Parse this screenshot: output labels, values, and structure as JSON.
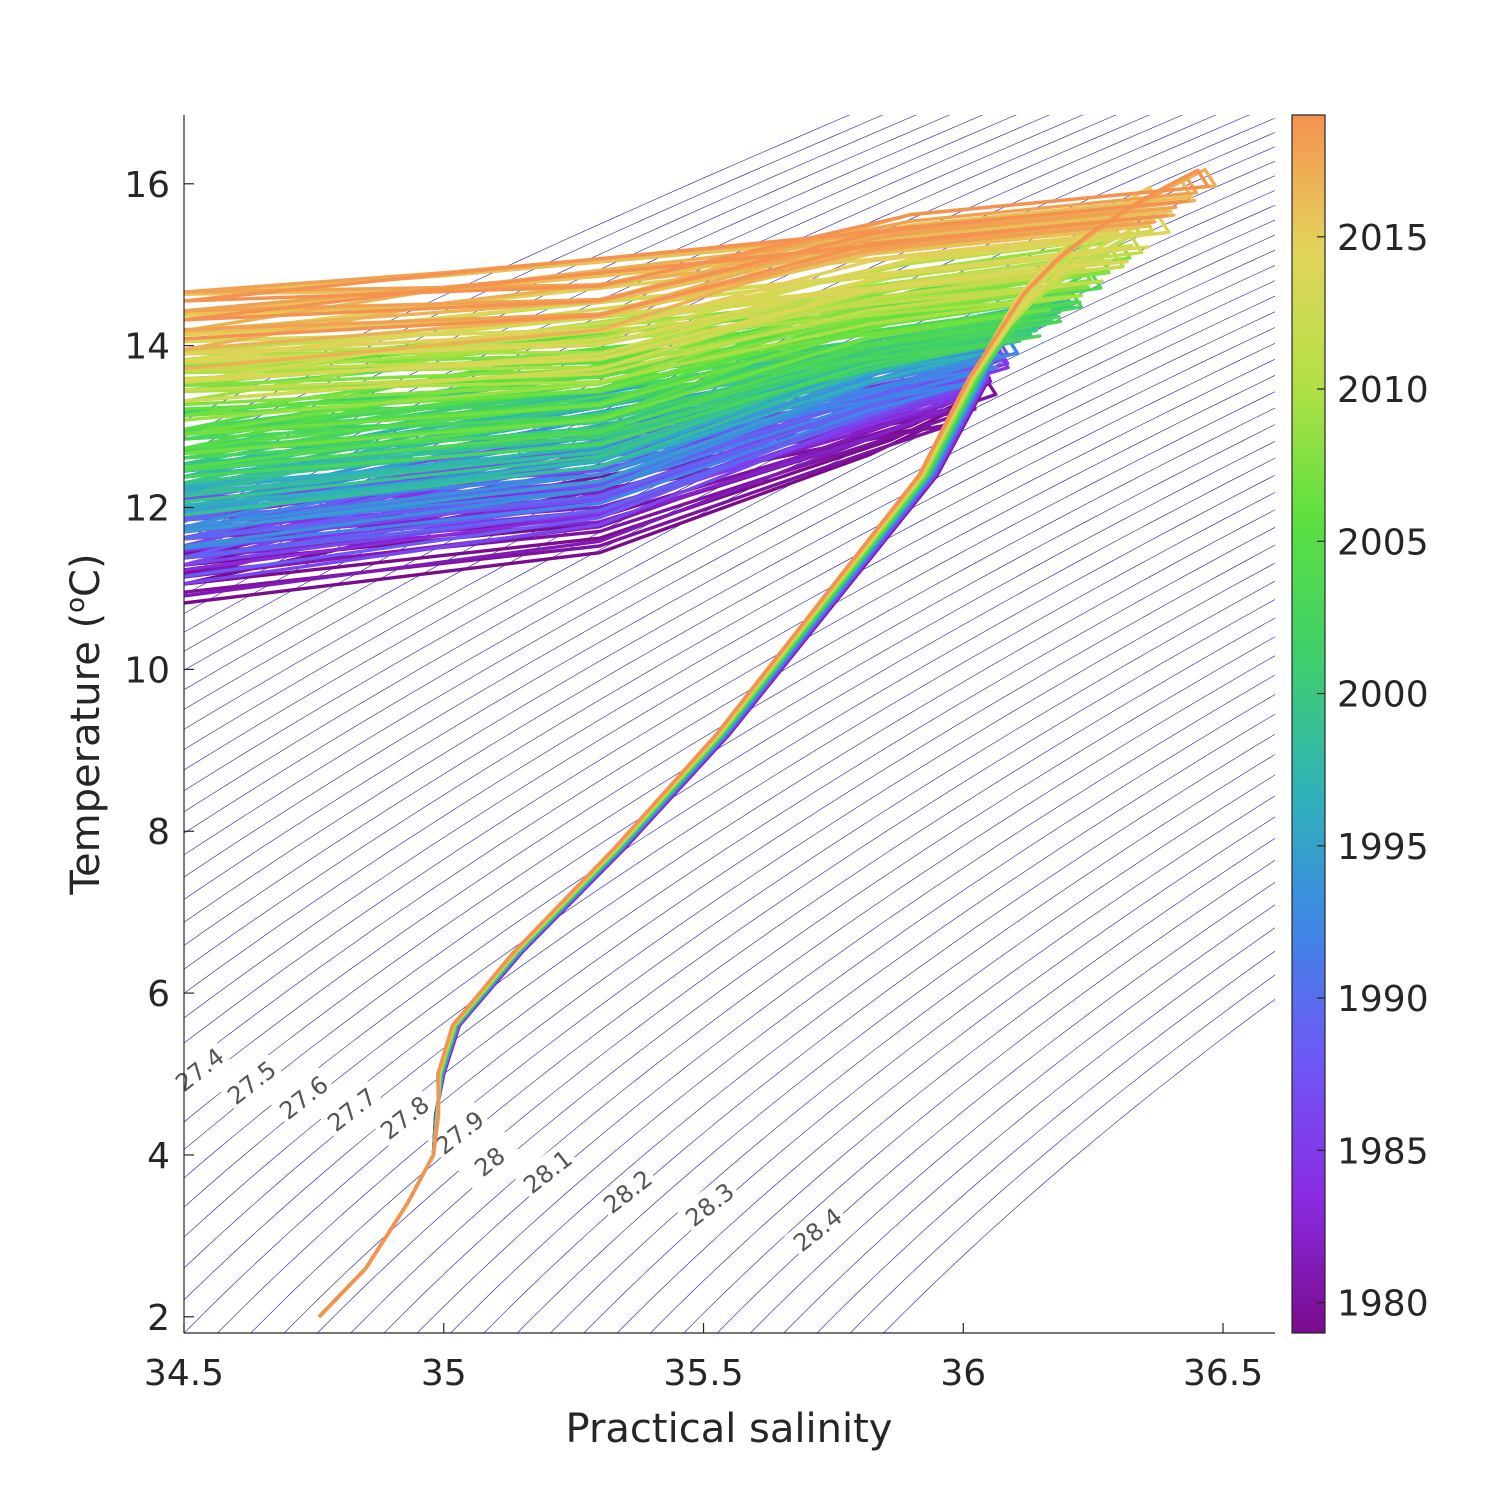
{
  "chart_data": {
    "type": "line",
    "title": "",
    "xlabel": "Practical salinity",
    "ylabel_main": "Temperature (",
    "ylabel_sup": "o",
    "ylabel_end": "C)",
    "xlim": [
      34.5,
      36.6
    ],
    "ylim": [
      1.8,
      16.85
    ],
    "xticks": [
      "34.5",
      "35",
      "35.5",
      "36",
      "36.5"
    ],
    "yticks": [
      "2",
      "4",
      "6",
      "8",
      "10",
      "12",
      "14",
      "16"
    ],
    "grid": false,
    "colorbar": {
      "label": "",
      "range": [
        1979,
        2019
      ],
      "ticks": [
        "1980",
        "1985",
        "1990",
        "1995",
        "2000",
        "2005",
        "2010",
        "2015"
      ],
      "colormap": [
        "#7a0b8c",
        "#8a2be2",
        "#6f57f5",
        "#3f86e6",
        "#2fb3b8",
        "#3fcf6a",
        "#5ce040",
        "#b2e045",
        "#e2d45a",
        "#f59250"
      ]
    },
    "isopycnals": {
      "color": "#1f1fa8",
      "levels_labeled": [
        "27.4",
        "27.5",
        "27.6",
        "27.7",
        "27.8",
        "27.9",
        "28",
        "28.1",
        "28.2",
        "28.3",
        "28.4"
      ]
    },
    "profile_shape": {
      "deep_segment": [
        [
          34.76,
          2.0
        ],
        [
          34.85,
          2.6
        ],
        [
          34.93,
          3.4
        ],
        [
          34.98,
          4.0
        ],
        [
          35.0,
          4.5
        ],
        [
          35.0,
          5.0
        ],
        [
          35.03,
          5.6
        ],
        [
          35.15,
          6.5
        ],
        [
          35.35,
          7.8
        ],
        [
          35.55,
          9.2
        ],
        [
          35.75,
          10.8
        ],
        [
          35.95,
          12.4
        ],
        [
          36.05,
          13.6
        ]
      ],
      "surface_segment": [
        [
          36.05,
          13.6
        ],
        [
          36.2,
          14.3
        ],
        [
          36.3,
          14.6
        ],
        [
          35.8,
          14.0
        ],
        [
          35.2,
          13.0
        ],
        [
          34.5,
          12.0
        ]
      ]
    },
    "series_count": 40,
    "year_start": 1979,
    "year_end": 2018
  }
}
